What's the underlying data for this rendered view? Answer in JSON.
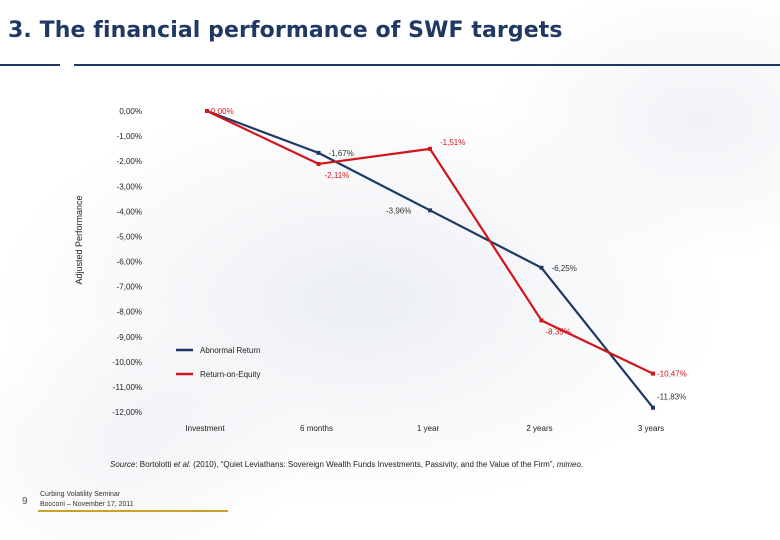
{
  "title": "3.  The financial performance of SWF targets",
  "colors": {
    "title": "#1f3864",
    "abnormal": "#1f3864",
    "roe": "#d0161c",
    "footer_rule": "#c9a227"
  },
  "chart_data": {
    "type": "line",
    "title": "",
    "xlabel": "",
    "ylabel": "Adjusted Performance",
    "categories": [
      "Investment",
      "6 months",
      "1 year",
      "2 years",
      "3 years"
    ],
    "ylim": [
      -12,
      0
    ],
    "yticks": [
      "0,00%",
      "-1,00%",
      "-2,00%",
      "-3,00%",
      "-4,00%",
      "-5,00%",
      "-6,00%",
      "-7,00%",
      "-8,00%",
      "-9,00%",
      "-10,00%",
      "-11,00%",
      "-12,00%"
    ],
    "series": [
      {
        "name": "Abnormal Return",
        "color": "#1f3864",
        "values": [
          0.0,
          -1.67,
          -3.96,
          -6.25,
          -11.83
        ],
        "labels": [
          "",
          "-1,67%",
          "-3,96%",
          "-6,25%",
          "-11,83%"
        ]
      },
      {
        "name": "Return-on-Equity",
        "color": "#d0161c",
        "values": [
          0.0,
          -2.11,
          -1.51,
          -8.35,
          -10.47
        ],
        "labels": [
          "0,00%",
          "-2,11%",
          "-1,51%",
          "-8,35%",
          "-10,47%"
        ]
      }
    ],
    "legend": "inside-lower-left",
    "grid": false
  },
  "source": {
    "label": "Source",
    "text_before": ": Bortolotti ",
    "etal": "et al.",
    "text_middle": " (2010), “Quiet Leviathans: Sovereign Wealth Funds Investments, Passivity, and the Value of the Firm”, ",
    "mimeo": "mimeo",
    "text_after": "."
  },
  "footer": {
    "page": "9",
    "line1": "Curbing Volatility Seminar",
    "line2": "Bocconi – November 17, 2011"
  }
}
